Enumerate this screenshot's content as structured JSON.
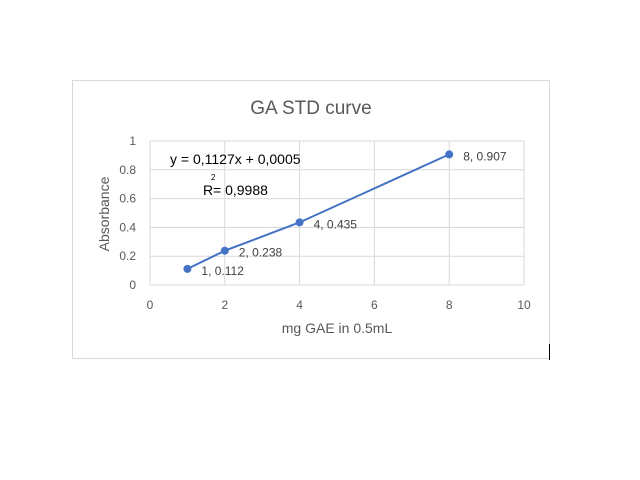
{
  "chart_data": {
    "type": "scatter",
    "title": "GA STD curve",
    "xlabel": "mg GAE in 0.5mL",
    "ylabel": "Absorbance",
    "xlim": [
      0,
      10
    ],
    "ylim": [
      0,
      1
    ],
    "x_ticks": [
      "0",
      "2",
      "4",
      "6",
      "8",
      "10"
    ],
    "y_ticks": [
      "0",
      "0.2",
      "0.4",
      "0.6",
      "0.8",
      "1"
    ],
    "grid": true,
    "series": [
      {
        "color": "#4472c4",
        "x": [
          1,
          2,
          4,
          8
        ],
        "y": [
          0.112,
          0.238,
          0.435,
          0.907
        ],
        "labels": [
          "1, 0.112",
          "2, 0.238",
          "4, 0.435",
          "8, 0.907"
        ]
      }
    ],
    "trendline": {
      "equation": "y = 0,1127x + 0,0005",
      "r2_symbol": "R",
      "r2_exponent": "2",
      "r2_value": " = 0,9988"
    }
  }
}
